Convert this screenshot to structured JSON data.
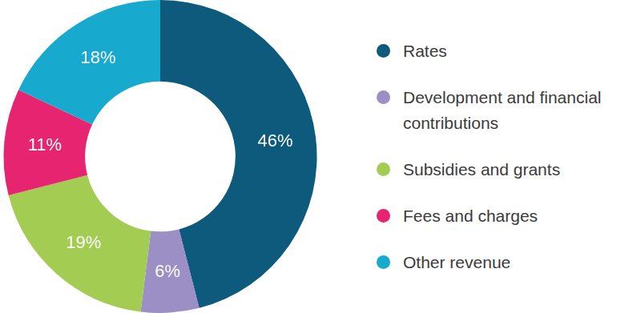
{
  "chart_data": {
    "type": "doughnut",
    "categories": [
      "Rates",
      "Development and financial contributions",
      "Subsidies and grants",
      "Fees and charges",
      "Other revenue"
    ],
    "values": [
      46,
      6,
      19,
      11,
      18
    ],
    "value_labels": [
      "46%",
      "6%",
      "19%",
      "11%",
      "18%"
    ],
    "colors": [
      "#0d5a7d",
      "#9b8fc6",
      "#a2cc52",
      "#e7246f",
      "#18a9cf"
    ],
    "data_labels": true,
    "legend": "right"
  }
}
